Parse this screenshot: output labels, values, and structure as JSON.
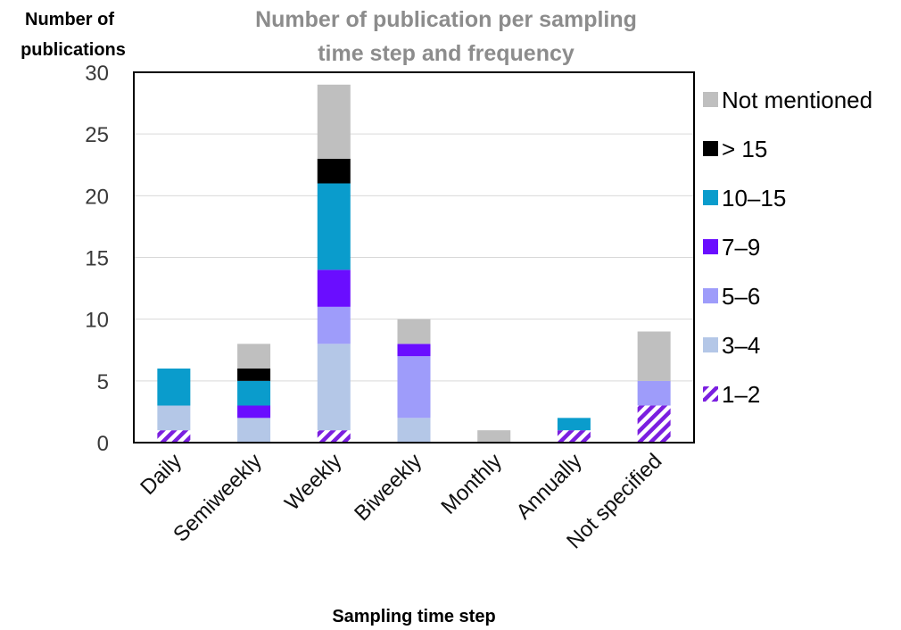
{
  "chart_data": {
    "type": "bar",
    "stacked": true,
    "title": [
      "Number of publication per sampling",
      "time step and frequency"
    ],
    "ylabel": [
      "Number of",
      "publications"
    ],
    "xlabel": "Sampling time step",
    "ylim": [
      0,
      30
    ],
    "yticks": [
      0,
      5,
      10,
      15,
      20,
      25,
      30
    ],
    "grid": "horizontal",
    "legend_position": "right",
    "categories": [
      "Daily",
      "Semiweekly",
      "Weekly",
      "Biweekly",
      "Monthly",
      "Annually",
      "Not specified"
    ],
    "series": [
      {
        "name": "1–2",
        "color": "#7b1fe0",
        "pattern": "hatched",
        "values": [
          1,
          0,
          1,
          0,
          0,
          1,
          3
        ]
      },
      {
        "name": "3–4",
        "color": "#b4c7e7",
        "values": [
          2,
          2,
          7,
          2,
          0,
          0,
          0
        ]
      },
      {
        "name": "5–6",
        "color": "#9e9cfa",
        "values": [
          0,
          0,
          3,
          5,
          0,
          0,
          2
        ]
      },
      {
        "name": "7–9",
        "color": "#6a0dff",
        "values": [
          0,
          1,
          3,
          1,
          0,
          0,
          0
        ]
      },
      {
        "name": "10–15",
        "color": "#0a9ccc",
        "values": [
          3,
          2,
          7,
          0,
          0,
          1,
          0
        ]
      },
      {
        "name": "> 15",
        "color": "#000000",
        "values": [
          0,
          1,
          2,
          0,
          0,
          0,
          0
        ]
      },
      {
        "name": "Not mentioned",
        "color": "#bfbfbf",
        "values": [
          0,
          2,
          6,
          2,
          1,
          0,
          4
        ]
      }
    ]
  }
}
